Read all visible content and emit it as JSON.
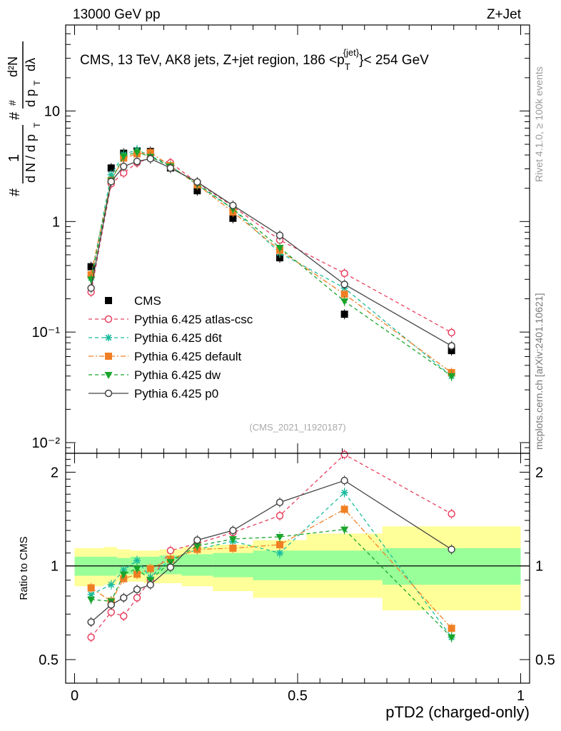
{
  "header": {
    "left": "13000 GeV pp",
    "right": "Z+Jet",
    "side_right_top": "Rivet 4.1.0, ≥ 100k events",
    "side_right_bottom": "mcplots.cern.ch [arXiv:2401.10621]",
    "analysis_id": "(CMS_2021_I1920187)"
  },
  "chart_data": [
    {
      "type": "scatter",
      "panel": "main",
      "title": "CMS, 13 TeV, AK8 jets, Z+jet region, 186 <p_T^{jet}> < 254 GeV",
      "title_parts": {
        "prefix": "CMS, 13 TeV, AK8 jets, Z+jet region, 186 <p",
        "sub": "T",
        "sup": "{jet}",
        "suffix": "}< 254 GeV"
      },
      "ylabel": "1/(dN/dp_T) d²N/(dp_T dλ)",
      "ylabel_parts": {
        "hash": "#",
        "one": "1",
        "dN_over_dp": "d N / d p",
        "T": "T",
        "d2N": "d²N",
        "dp_dlambda": "d p",
        "dlambda": "dλ"
      },
      "yscale": "log",
      "ylim": [
        0.008,
        60
      ],
      "xlim": [
        -0.02,
        1.02
      ],
      "ytick_labels": {
        "0.01": "10⁻²",
        "0.1": "10⁻¹",
        "1": "1",
        "10": "10"
      },
      "x": [
        0.037,
        0.082,
        0.11,
        0.14,
        0.17,
        0.215,
        0.275,
        0.355,
        0.46,
        0.605,
        0.845
      ],
      "series": [
        {
          "name": "CMS",
          "color": "#000000",
          "marker": "square-filled",
          "line": "none",
          "values": [
            0.39,
            3.05,
            4.15,
            4.35,
            4.3,
            3.05,
            1.9,
            1.07,
            0.47,
            0.145,
            0.068
          ]
        },
        {
          "name": "Pythia 6.425 atlas-csc",
          "color": "#e8405f",
          "marker": "circle-open",
          "line": "dashed",
          "values": [
            0.23,
            2.2,
            2.75,
            3.4,
            3.75,
            3.4,
            2.25,
            1.37,
            0.68,
            0.34,
            0.099
          ]
        },
        {
          "name": "Pythia 6.425 d6t",
          "color": "#1abc9c",
          "marker": "star",
          "line": "dashed",
          "values": [
            0.31,
            2.65,
            4.05,
            4.45,
            3.95,
            3.2,
            2.15,
            1.3,
            0.52,
            0.25,
            0.04
          ]
        },
        {
          "name": "Pythia 6.425 default",
          "color": "#f07f24",
          "marker": "square-filled",
          "line": "dashdot",
          "values": [
            0.33,
            2.35,
            3.75,
            4.1,
            4.2,
            3.2,
            2.15,
            1.22,
            0.55,
            0.22,
            0.043
          ]
        },
        {
          "name": "Pythia 6.425 dw",
          "color": "#1aa52c",
          "marker": "triangle-down",
          "line": "dashed",
          "values": [
            0.3,
            2.35,
            3.9,
            4.25,
            3.85,
            3.15,
            2.2,
            1.3,
            0.58,
            0.19,
            0.04
          ]
        },
        {
          "name": "Pythia 6.425 p0",
          "color": "#444444",
          "marker": "circle-open",
          "line": "solid",
          "values": [
            0.25,
            2.3,
            3.15,
            3.5,
            3.7,
            3.05,
            2.28,
            1.4,
            0.75,
            0.27,
            0.075
          ]
        }
      ]
    },
    {
      "type": "scatter",
      "panel": "ratio",
      "ylabel": "Ratio to CMS",
      "xlabel": "pTD2 (charged-only)",
      "yscale": "log",
      "ylim": [
        0.42,
        2.3
      ],
      "xlim": [
        -0.02,
        1.02
      ],
      "xticks": [
        0,
        0.5,
        1
      ],
      "xtick_labels": [
        "0",
        "0.5",
        "1"
      ],
      "yticks": [
        0.5,
        1,
        2
      ],
      "ytick_labels": [
        "0.5",
        "1",
        "2"
      ],
      "x": [
        0.037,
        0.082,
        0.11,
        0.14,
        0.17,
        0.215,
        0.275,
        0.355,
        0.46,
        0.605,
        0.845
      ],
      "bands": {
        "edges": [
          0,
          0.065,
          0.095,
          0.125,
          0.155,
          0.19,
          0.24,
          0.31,
          0.4,
          0.52,
          0.69,
          1.0
        ],
        "stat_lo": [
          0.93,
          0.93,
          0.94,
          0.94,
          0.94,
          0.94,
          0.93,
          0.92,
          0.9,
          0.9,
          0.87
        ],
        "stat_hi": [
          1.07,
          1.07,
          1.06,
          1.07,
          1.07,
          1.08,
          1.09,
          1.1,
          1.12,
          1.12,
          1.14
        ],
        "total_lo": [
          0.86,
          0.87,
          0.89,
          0.89,
          0.88,
          0.88,
          0.86,
          0.83,
          0.79,
          0.79,
          0.72
        ],
        "total_hi": [
          1.14,
          1.15,
          1.13,
          1.12,
          1.12,
          1.13,
          1.15,
          1.17,
          1.21,
          1.27,
          1.34
        ]
      },
      "series": [
        {
          "name": "Pythia 6.425 atlas-csc",
          "color": "#e8405f",
          "marker": "circle-open",
          "line": "dashed",
          "values": [
            0.59,
            0.71,
            0.69,
            0.79,
            0.9,
            1.12,
            1.18,
            1.28,
            1.45,
            2.28,
            1.47
          ]
        },
        {
          "name": "Pythia 6.425 d6t",
          "color": "#1abc9c",
          "marker": "star",
          "line": "dashed",
          "values": [
            0.81,
            0.87,
            0.97,
            1.04,
            0.92,
            1.05,
            1.13,
            1.2,
            1.1,
            1.72,
            0.59
          ]
        },
        {
          "name": "Pythia 6.425 default",
          "color": "#f07f24",
          "marker": "square-filled",
          "line": "dashdot",
          "values": [
            0.85,
            0.77,
            0.91,
            0.94,
            0.98,
            1.05,
            1.13,
            1.14,
            1.17,
            1.52,
            0.63
          ]
        },
        {
          "name": "Pythia 6.425 dw",
          "color": "#1aa52c",
          "marker": "triangle-down",
          "line": "dashed",
          "values": [
            0.78,
            0.77,
            0.94,
            0.98,
            0.9,
            1.03,
            1.16,
            1.22,
            1.24,
            1.31,
            0.59
          ]
        },
        {
          "name": "Pythia 6.425 p0",
          "color": "#444444",
          "marker": "circle-open",
          "line": "solid",
          "values": [
            0.66,
            0.75,
            0.79,
            0.84,
            0.87,
            0.99,
            1.21,
            1.3,
            1.6,
            1.88,
            1.13
          ]
        }
      ]
    }
  ]
}
